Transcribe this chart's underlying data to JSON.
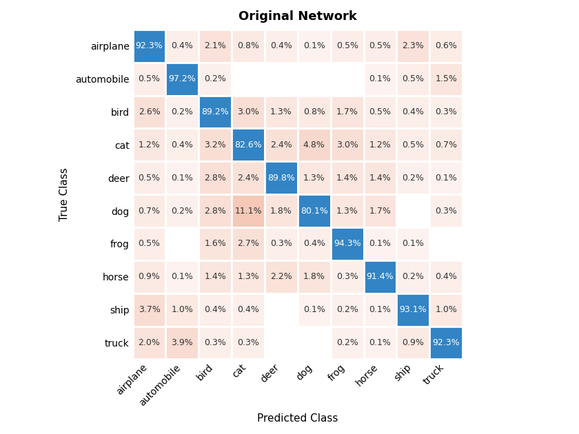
{
  "title": "Original Network",
  "xlabel": "Predicted Class",
  "ylabel": "True Class",
  "classes": [
    "airplane",
    "automobile",
    "bird",
    "cat",
    "deer",
    "dog",
    "frog",
    "horse",
    "ship",
    "truck"
  ],
  "matrix": [
    [
      92.3,
      0.4,
      2.1,
      0.8,
      0.4,
      0.1,
      0.5,
      0.5,
      2.3,
      0.6
    ],
    [
      0.5,
      97.2,
      0.2,
      0.0,
      0.0,
      0.0,
      0.0,
      0.1,
      0.5,
      1.5
    ],
    [
      2.6,
      0.2,
      89.2,
      3.0,
      1.3,
      0.8,
      1.7,
      0.5,
      0.4,
      0.3
    ],
    [
      1.2,
      0.4,
      3.2,
      82.6,
      2.4,
      4.8,
      3.0,
      1.2,
      0.5,
      0.7
    ],
    [
      0.5,
      0.1,
      2.8,
      2.4,
      89.8,
      1.3,
      1.4,
      1.4,
      0.2,
      0.1
    ],
    [
      0.7,
      0.2,
      2.8,
      11.1,
      1.8,
      80.1,
      1.3,
      1.7,
      0.0,
      0.3
    ],
    [
      0.5,
      0.0,
      1.6,
      2.7,
      0.3,
      0.4,
      94.3,
      0.1,
      0.1,
      0.0
    ],
    [
      0.9,
      0.1,
      1.4,
      1.3,
      2.2,
      1.8,
      0.3,
      91.4,
      0.2,
      0.4
    ],
    [
      3.7,
      1.0,
      0.4,
      0.4,
      0.0,
      0.1,
      0.2,
      0.1,
      93.1,
      1.0
    ],
    [
      2.0,
      3.9,
      0.3,
      0.3,
      0.0,
      0.0,
      0.2,
      0.1,
      0.9,
      92.3
    ]
  ],
  "display_matrix": [
    [
      "92.3%",
      "0.4%",
      "2.1%",
      "0.8%",
      "0.4%",
      "0.1%",
      "0.5%",
      "0.5%",
      "2.3%",
      "0.6%"
    ],
    [
      "0.5%",
      "97.2%",
      "0.2%",
      "",
      "",
      "",
      "",
      "0.1%",
      "0.5%",
      "1.5%"
    ],
    [
      "2.6%",
      "0.2%",
      "89.2%",
      "3.0%",
      "1.3%",
      "0.8%",
      "1.7%",
      "0.5%",
      "0.4%",
      "0.3%"
    ],
    [
      "1.2%",
      "0.4%",
      "3.2%",
      "82.6%",
      "2.4%",
      "4.8%",
      "3.0%",
      "1.2%",
      "0.5%",
      "0.7%"
    ],
    [
      "0.5%",
      "0.1%",
      "2.8%",
      "2.4%",
      "89.8%",
      "1.3%",
      "1.4%",
      "1.4%",
      "0.2%",
      "0.1%"
    ],
    [
      "0.7%",
      "0.2%",
      "2.8%",
      "11.1%",
      "1.8%",
      "80.1%",
      "1.3%",
      "1.7%",
      "",
      "0.3%"
    ],
    [
      "0.5%",
      "",
      "1.6%",
      "2.7%",
      "0.3%",
      "0.4%",
      "94.3%",
      "0.1%",
      "0.1%",
      ""
    ],
    [
      "0.9%",
      "0.1%",
      "1.4%",
      "1.3%",
      "2.2%",
      "1.8%",
      "0.3%",
      "91.4%",
      "0.2%",
      "0.4%"
    ],
    [
      "3.7%",
      "1.0%",
      "0.4%",
      "0.4%",
      "",
      "0.1%",
      "0.2%",
      "0.1%",
      "93.1%",
      "1.0%"
    ],
    [
      "2.0%",
      "3.9%",
      "0.3%",
      "0.3%",
      "",
      "",
      "0.2%",
      "0.1%",
      "0.9%",
      "92.3%"
    ]
  ],
  "show_text": [
    [
      true,
      true,
      true,
      true,
      true,
      true,
      true,
      true,
      true,
      true
    ],
    [
      true,
      true,
      true,
      false,
      false,
      false,
      false,
      true,
      true,
      true
    ],
    [
      true,
      true,
      true,
      true,
      true,
      true,
      true,
      true,
      true,
      true
    ],
    [
      true,
      true,
      true,
      true,
      true,
      true,
      true,
      true,
      true,
      true
    ],
    [
      true,
      true,
      true,
      true,
      true,
      true,
      true,
      true,
      true,
      true
    ],
    [
      true,
      true,
      true,
      true,
      true,
      true,
      true,
      true,
      false,
      true
    ],
    [
      true,
      false,
      true,
      true,
      true,
      true,
      true,
      true,
      true,
      false
    ],
    [
      true,
      true,
      true,
      true,
      true,
      true,
      true,
      true,
      true,
      true
    ],
    [
      true,
      true,
      true,
      true,
      false,
      true,
      true,
      true,
      true,
      true
    ],
    [
      true,
      true,
      true,
      true,
      false,
      false,
      true,
      true,
      true,
      true
    ]
  ],
  "white_cells": [
    [
      false,
      false,
      false,
      false,
      false,
      false,
      false,
      false,
      false,
      false
    ],
    [
      false,
      false,
      false,
      true,
      true,
      true,
      true,
      false,
      false,
      false
    ],
    [
      false,
      false,
      false,
      false,
      false,
      false,
      false,
      false,
      false,
      false
    ],
    [
      false,
      false,
      false,
      false,
      false,
      false,
      false,
      false,
      false,
      false
    ],
    [
      false,
      false,
      false,
      false,
      false,
      false,
      false,
      false,
      false,
      false
    ],
    [
      false,
      false,
      false,
      false,
      false,
      false,
      false,
      false,
      true,
      false
    ],
    [
      false,
      true,
      false,
      false,
      false,
      false,
      false,
      false,
      false,
      true
    ],
    [
      false,
      false,
      false,
      false,
      false,
      false,
      false,
      false,
      false,
      false
    ],
    [
      false,
      false,
      false,
      false,
      true,
      false,
      false,
      false,
      false,
      false
    ],
    [
      false,
      false,
      false,
      false,
      true,
      true,
      false,
      false,
      false,
      false
    ]
  ],
  "diagonal_color": "#3384C4",
  "low_color": "#F5C8B8",
  "zero_color": "#FFFFFF",
  "diag_text_color": "#FFFFFF",
  "offdiag_text_color": "#333333",
  "title_fontsize": 13,
  "label_fontsize": 11,
  "tick_fontsize": 10,
  "cell_fontsize": 9,
  "background_color": "#FFFFFF"
}
